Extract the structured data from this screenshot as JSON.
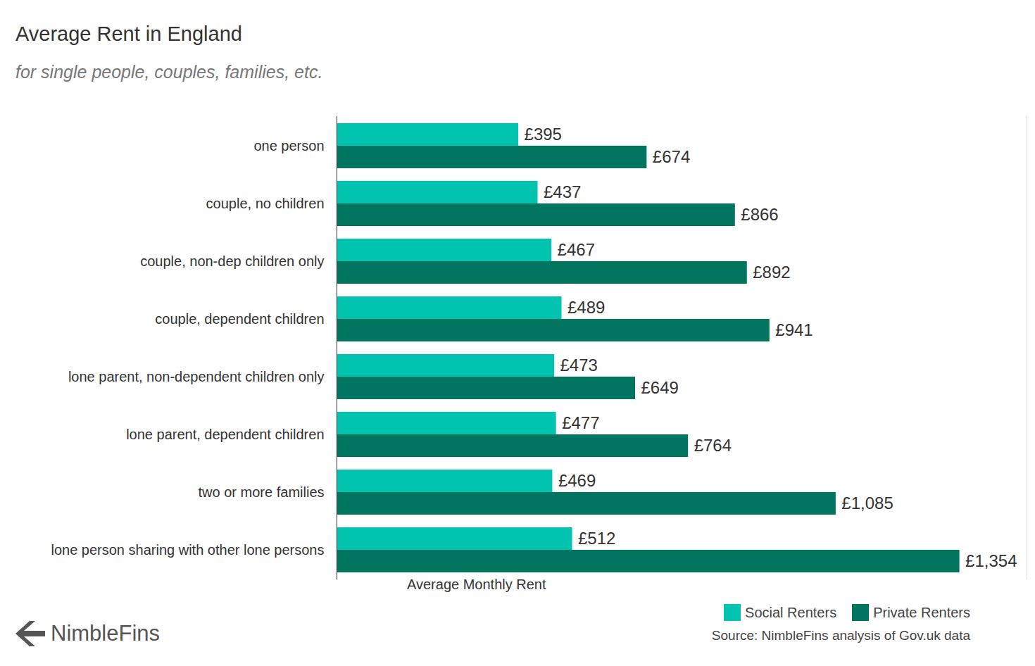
{
  "chart_data": {
    "type": "bar",
    "orientation": "horizontal",
    "title": "Average Rent in England",
    "subtitle": "for single people, couples, families, etc.",
    "xlabel": "Average Monthly Rent",
    "categories": [
      "one person",
      "couple, no children",
      "couple, non-dep children only",
      "couple, dependent children",
      "lone parent, non-dependent children only",
      "lone parent, dependent children",
      "two or more families",
      "lone person sharing with other lone persons"
    ],
    "series": [
      {
        "name": "Social Renters",
        "color": "#00c4b0",
        "values": [
          395,
          437,
          467,
          489,
          473,
          477,
          469,
          512
        ],
        "value_labels": [
          "£395",
          "£437",
          "£467",
          "£489",
          "£473",
          "£477",
          "£469",
          "£512"
        ]
      },
      {
        "name": "Private Renters",
        "color": "#00755f",
        "values": [
          674,
          866,
          892,
          941,
          649,
          764,
          1085,
          1354
        ],
        "value_labels": [
          "£674",
          "£866",
          "£892",
          "£941",
          "£649",
          "£764",
          "£1,085",
          "£1,354"
        ]
      }
    ],
    "xlim": [
      0,
      1500
    ],
    "xticks": [],
    "tick_labels": "y",
    "data_labels": true,
    "grid": false,
    "legend": "bottom-right",
    "source": "Source: NimbleFins analysis of Gov.uk data",
    "brand": "NimbleFins"
  }
}
